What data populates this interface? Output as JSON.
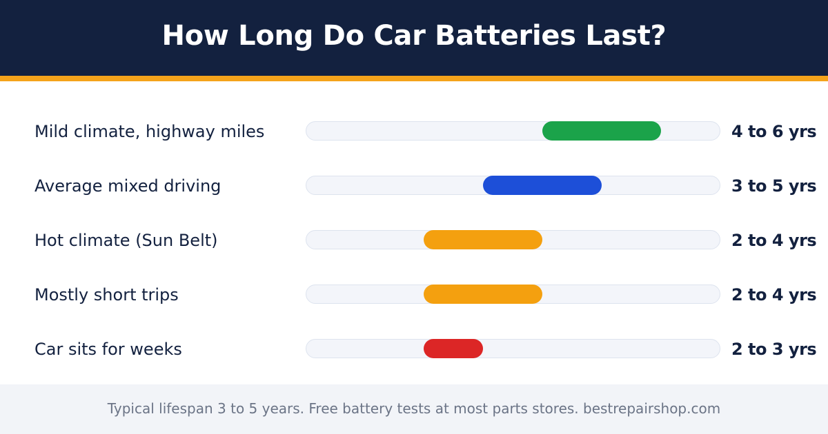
{
  "header": {
    "title": "How Long Do Car Batteries Last?"
  },
  "colors": {
    "header_bg": "#13213f",
    "accent": "#f4a31b",
    "green": "#1ba34a",
    "blue": "#1d4fd8",
    "orange": "#f4a00f",
    "red": "#dc2626"
  },
  "chart_data": {
    "type": "bar",
    "orientation": "horizontal-range",
    "title": "How Long Do Car Batteries Last?",
    "xlim": [
      0,
      7
    ],
    "grid": false,
    "categories": [
      "Mild climate, highway miles",
      "Average mixed driving",
      "Hot climate (Sun Belt)",
      "Mostly short trips",
      "Car sits for weeks"
    ],
    "ranges": [
      {
        "min": 4,
        "max": 6,
        "label": "4 to 6 yrs",
        "color": "#1ba34a"
      },
      {
        "min": 3,
        "max": 5,
        "label": "3 to 5 yrs",
        "color": "#1d4fd8"
      },
      {
        "min": 2,
        "max": 4,
        "label": "2 to 4 yrs",
        "color": "#f4a00f"
      },
      {
        "min": 2,
        "max": 4,
        "label": "2 to 4 yrs",
        "color": "#f4a00f"
      },
      {
        "min": 2,
        "max": 3,
        "label": "2 to 3 yrs",
        "color": "#dc2626"
      }
    ]
  },
  "footer": {
    "text": "Typical lifespan 3 to 5 years. Free battery tests at most parts stores. bestrepairshop.com"
  }
}
